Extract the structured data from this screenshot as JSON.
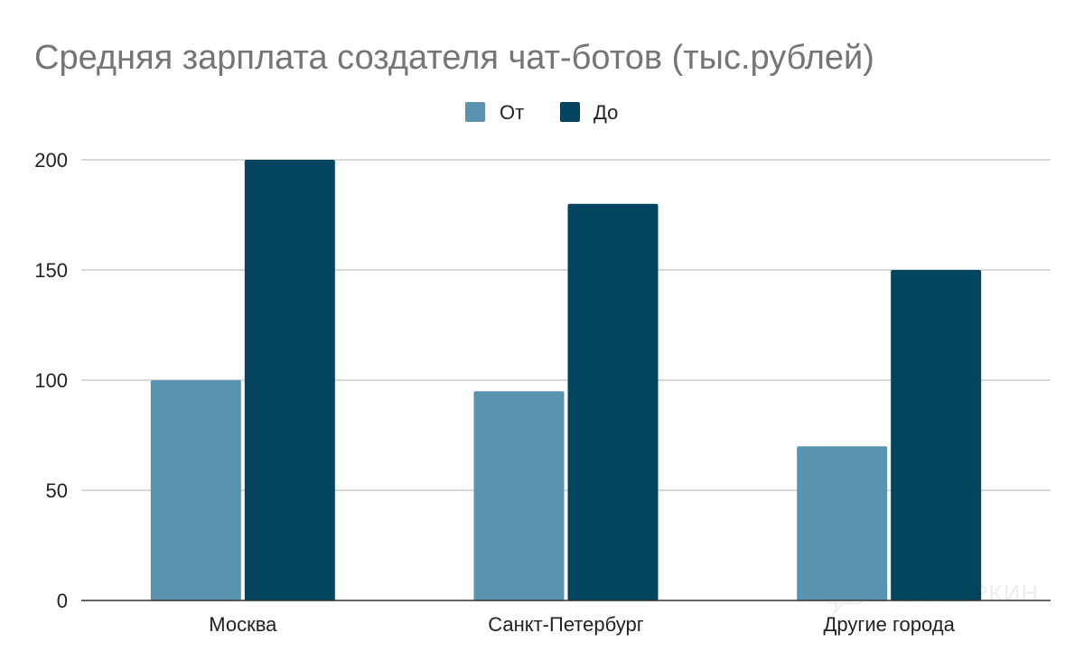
{
  "chart_data": {
    "type": "bar",
    "title": "Средняя зарплата создателя чат-ботов (тыс.рублей)",
    "xlabel": "",
    "ylabel": "",
    "categories": [
      "Москва",
      "Санкт-Петербург",
      "Другие города"
    ],
    "series": [
      {
        "name": "От",
        "values": [
          100,
          95,
          70
        ],
        "color": "#5a93b0"
      },
      {
        "name": "До",
        "values": [
          200,
          180,
          150
        ],
        "color": "#03445f"
      }
    ],
    "ylim": [
      0,
      200
    ],
    "yticks": [
      0,
      50,
      100,
      150,
      200
    ],
    "grid": true,
    "legend_position": "top-center"
  },
  "watermark": {
    "text": "ПАРТНЕРКИН",
    "icon": "chat-bubble-logo-icon"
  },
  "colors": {
    "title": "#757575",
    "gridline": "#cccccc",
    "axis": "#333333",
    "text": "#222222"
  }
}
